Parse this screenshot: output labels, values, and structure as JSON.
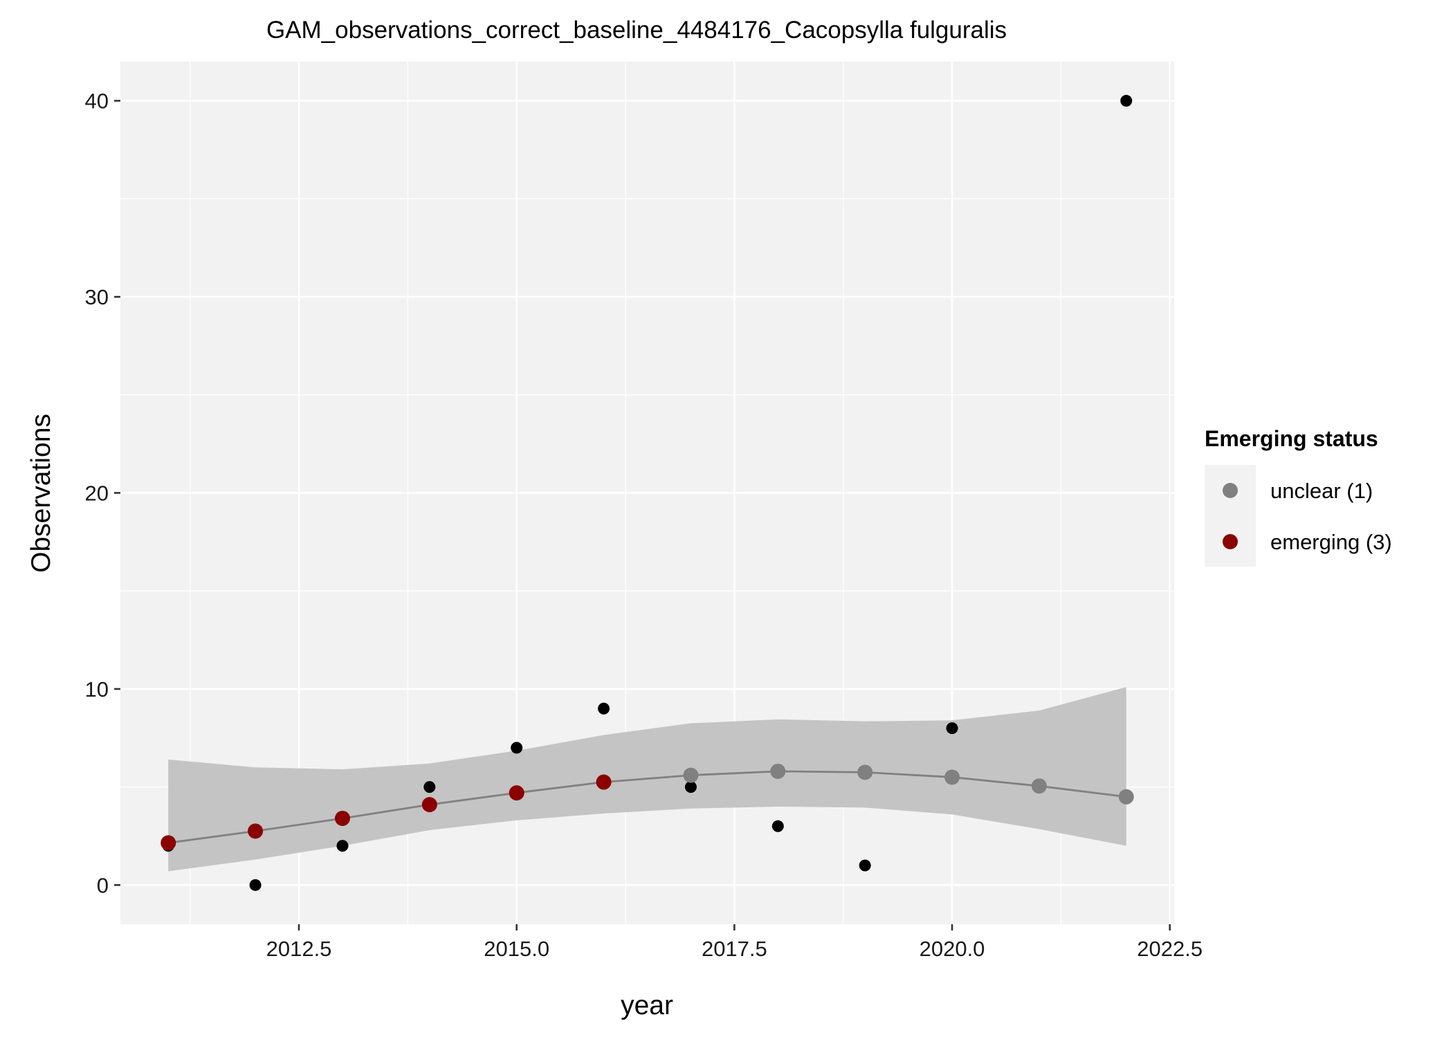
{
  "chart_data": {
    "type": "scatter",
    "title": "GAM_observations_correct_baseline_4484176_Cacopsylla fulguralis",
    "xlabel": "year",
    "ylabel": "Observations",
    "xlim": [
      2010.45,
      2022.55
    ],
    "ylim": [
      -2,
      42
    ],
    "x_ticks": [
      2012.5,
      2015.0,
      2017.5,
      2020.0,
      2022.5
    ],
    "x_tick_labels": [
      "2012.5",
      "2015.0",
      "2017.5",
      "2020.0",
      "2022.5"
    ],
    "y_ticks": [
      0,
      10,
      20,
      30,
      40
    ],
    "y_tick_labels": [
      "0",
      "10",
      "20",
      "30",
      "40"
    ],
    "grid": true,
    "observations": {
      "x": [
        2011,
        2012,
        2013,
        2014,
        2015,
        2016,
        2017,
        2018,
        2019,
        2020,
        2021,
        2022
      ],
      "y": [
        2,
        0,
        2,
        5,
        7,
        9,
        5,
        3,
        1,
        8,
        5,
        40
      ]
    },
    "gam_fit": {
      "x": [
        2011,
        2012,
        2013,
        2014,
        2015,
        2016,
        2017,
        2018,
        2019,
        2020,
        2021,
        2022
      ],
      "y": [
        2.15,
        2.75,
        3.4,
        4.1,
        4.7,
        5.25,
        5.6,
        5.8,
        5.75,
        5.5,
        5.05,
        4.5
      ],
      "lower": [
        0.7,
        1.3,
        2.0,
        2.8,
        3.3,
        3.65,
        3.9,
        4.0,
        3.95,
        3.6,
        2.85,
        2.0
      ],
      "upper": [
        6.4,
        6.0,
        5.9,
        6.2,
        6.85,
        7.65,
        8.25,
        8.45,
        8.35,
        8.4,
        8.9,
        10.1
      ],
      "status": [
        "emerging",
        "emerging",
        "emerging",
        "emerging",
        "emerging",
        "emerging",
        "unclear",
        "unclear",
        "unclear",
        "unclear",
        "unclear",
        "unclear"
      ]
    },
    "legend": {
      "title": "Emerging status",
      "placement": "right",
      "items": [
        {
          "key": "unclear",
          "label": "unclear (1)",
          "color": "#808080"
        },
        {
          "key": "emerging",
          "label": "emerging (3)",
          "color": "#8B0000"
        }
      ]
    },
    "colors": {
      "panel": "#F2F2F2",
      "grid": "#FFFFFF",
      "ribbon": "#C4C4C4",
      "line": "#808080",
      "observation": "#000000"
    }
  }
}
